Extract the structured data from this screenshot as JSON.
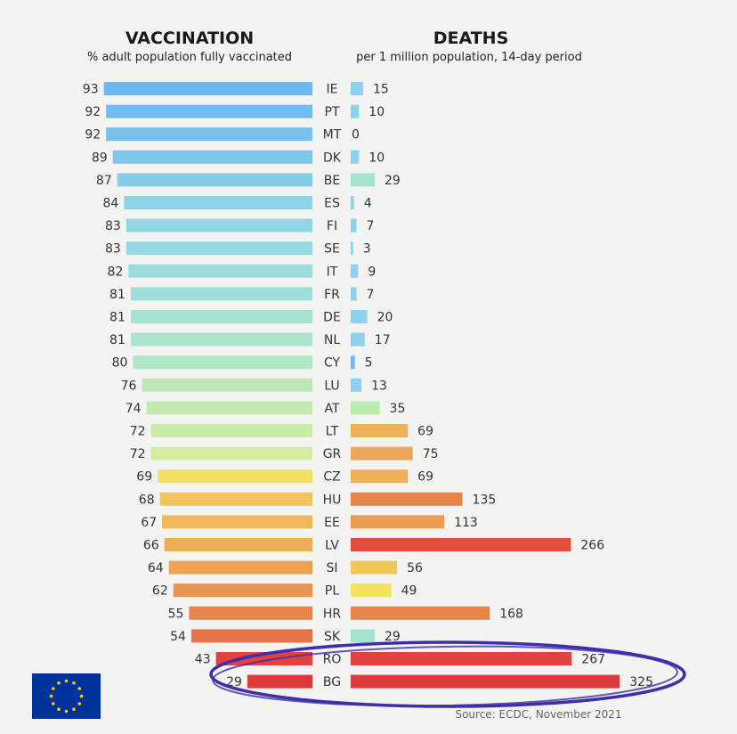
{
  "chart_data": [
    {
      "type": "bar",
      "title": "VACCINATION",
      "subtitle": "% adult population fully vaccinated",
      "categories": [
        "IE",
        "PT",
        "MT",
        "DK",
        "BE",
        "ES",
        "FI",
        "SE",
        "IT",
        "FR",
        "DE",
        "NL",
        "CY",
        "LU",
        "AT",
        "LT",
        "GR",
        "CZ",
        "HU",
        "EE",
        "LV",
        "SI",
        "PL",
        "HR",
        "SK",
        "RO",
        "BG"
      ],
      "values": [
        93,
        92,
        92,
        89,
        87,
        84,
        83,
        83,
        82,
        81,
        81,
        81,
        80,
        76,
        74,
        72,
        72,
        69,
        68,
        67,
        66,
        64,
        62,
        55,
        54,
        43,
        29
      ]
    },
    {
      "type": "bar",
      "title": "DEATHS",
      "subtitle": "per 1 million population, 14-day period",
      "categories": [
        "IE",
        "PT",
        "MT",
        "DK",
        "BE",
        "ES",
        "FI",
        "SE",
        "IT",
        "FR",
        "DE",
        "NL",
        "CY",
        "LU",
        "AT",
        "LT",
        "GR",
        "CZ",
        "HU",
        "EE",
        "LV",
        "SI",
        "PL",
        "HR",
        "SK",
        "RO",
        "BG"
      ],
      "values": [
        15,
        10,
        0,
        10,
        29,
        4,
        7,
        3,
        9,
        7,
        20,
        17,
        5,
        13,
        35,
        69,
        75,
        69,
        135,
        113,
        266,
        56,
        49,
        168,
        29,
        267,
        325
      ]
    }
  ],
  "colors": {
    "vaccination": [
      "#6fb8f2",
      "#72bdf0",
      "#76c1ee",
      "#7ec7ea",
      "#86cce8",
      "#8ed3e6",
      "#92d6e4",
      "#96d9e2",
      "#9adcdf",
      "#9fdfd9",
      "#a5e2d2",
      "#abe4cb",
      "#b2e6c4",
      "#bae8b8",
      "#c4eab0",
      "#cbeca8",
      "#d2eca2",
      "#f4e065",
      "#f2c45e",
      "#f0b85a",
      "#eead56",
      "#eba252",
      "#e9944e",
      "#e8834a",
      "#e67448",
      "#e0433f",
      "#dc3a3a"
    ],
    "deaths": [
      "#8fd0ea",
      "#8fd0ea",
      "#8fd0ea",
      "#8fd0ea",
      "#a6e2d2",
      "#8fd0ea",
      "#8fd0ea",
      "#8fd0ea",
      "#8fd0ea",
      "#8fd0ea",
      "#8fd0ea",
      "#8fd0ea",
      "#6fb8f2",
      "#8fd0ea",
      "#bcebad",
      "#eeb157",
      "#eba85a",
      "#eeb157",
      "#e8834a",
      "#ec9c52",
      "#df4f3c",
      "#f1c75a",
      "#f3e25f",
      "#e8834a",
      "#a6e2d2",
      "#e0433f",
      "#dc3a3a"
    ],
    "highlight_ring": "#3e2ea8",
    "eu_blue": "#003399",
    "eu_star": "#ffcc00"
  },
  "source": "Source: ECDC, November 2021",
  "logo": "EU flag"
}
